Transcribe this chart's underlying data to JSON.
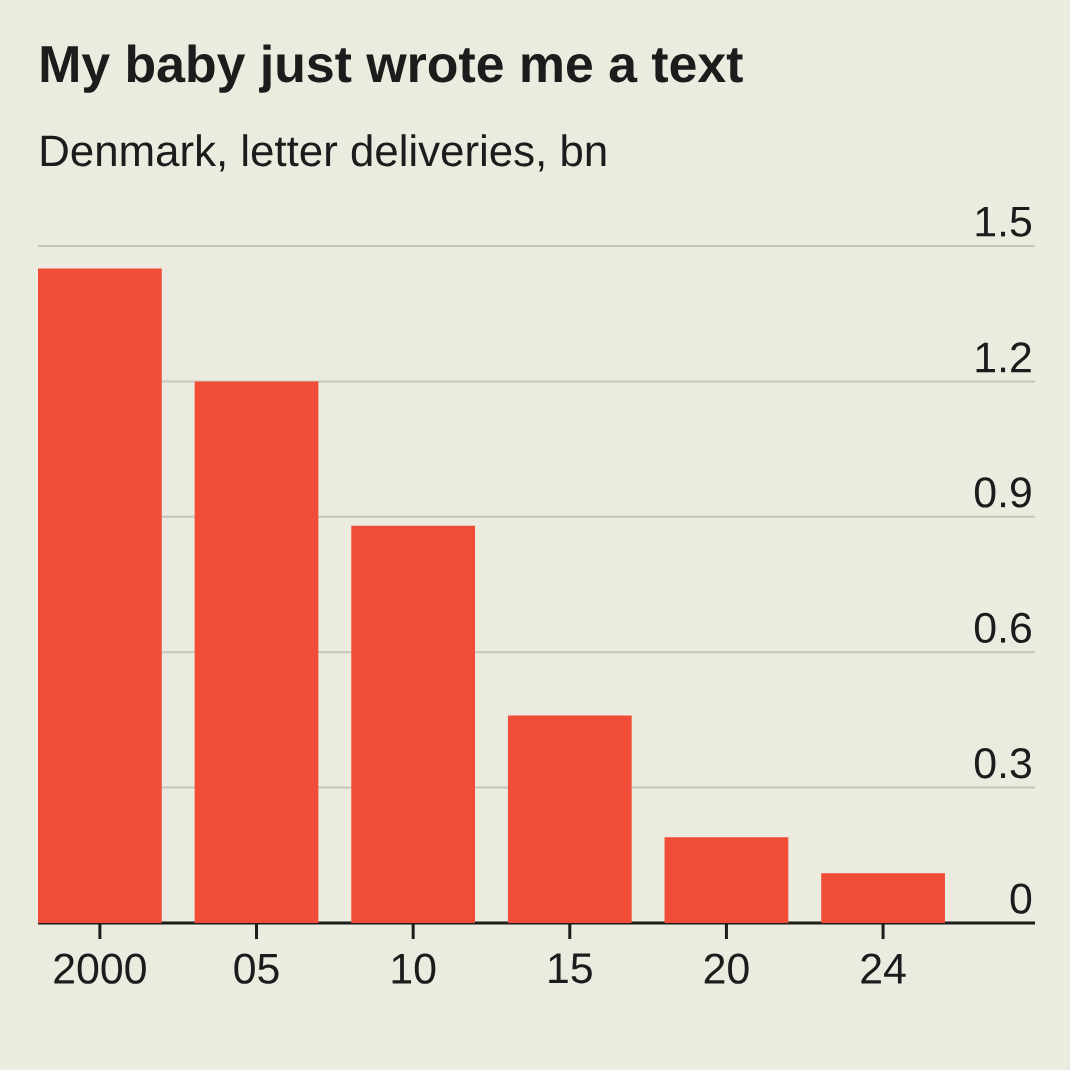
{
  "chart_data": {
    "type": "bar",
    "title": "My baby just wrote me a text",
    "subtitle": "Denmark, letter deliveries, bn",
    "categories": [
      "2000",
      "05",
      "10",
      "15",
      "20",
      "24"
    ],
    "values": [
      1.45,
      1.2,
      0.88,
      0.46,
      0.19,
      0.11
    ],
    "color": "#ef4d37",
    "ylim": [
      0,
      1.5
    ],
    "yticks": [
      0,
      0.3,
      0.6,
      0.9,
      1.2,
      1.5
    ],
    "grid": "y"
  }
}
